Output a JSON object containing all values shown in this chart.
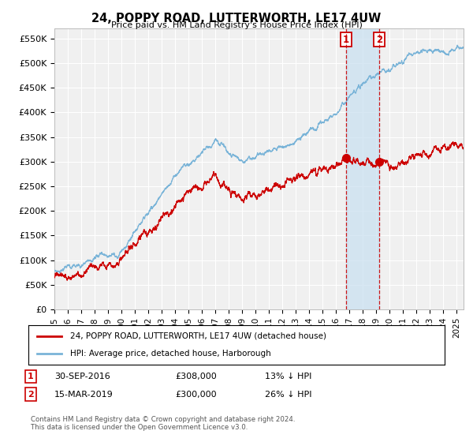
{
  "title": "24, POPPY ROAD, LUTTERWORTH, LE17 4UW",
  "subtitle": "Price paid vs. HM Land Registry's House Price Index (HPI)",
  "ylabel_ticks": [
    "£0",
    "£50K",
    "£100K",
    "£150K",
    "£200K",
    "£250K",
    "£300K",
    "£350K",
    "£400K",
    "£450K",
    "£500K",
    "£550K"
  ],
  "ytick_values": [
    0,
    50000,
    100000,
    150000,
    200000,
    250000,
    300000,
    350000,
    400000,
    450000,
    500000,
    550000
  ],
  "ylim": [
    0,
    570000
  ],
  "xlim_start": 1995.0,
  "xlim_end": 2025.5,
  "hpi_color": "#7ab4d8",
  "price_color": "#cc0000",
  "marker1_x": 2016.75,
  "marker1_y": 308000,
  "marker2_x": 2019.21,
  "marker2_y": 300000,
  "shade_color": "#c8dff0",
  "legend_label1": "24, POPPY ROAD, LUTTERWORTH, LE17 4UW (detached house)",
  "legend_label2": "HPI: Average price, detached house, Harborough",
  "annotation1_date": "30-SEP-2016",
  "annotation1_price": "£308,000",
  "annotation1_pct": "13% ↓ HPI",
  "annotation2_date": "15-MAR-2019",
  "annotation2_price": "£300,000",
  "annotation2_pct": "26% ↓ HPI",
  "footer": "Contains HM Land Registry data © Crown copyright and database right 2024.\nThis data is licensed under the Open Government Licence v3.0.",
  "background_color": "#ffffff",
  "plot_background": "#f0f0f0"
}
